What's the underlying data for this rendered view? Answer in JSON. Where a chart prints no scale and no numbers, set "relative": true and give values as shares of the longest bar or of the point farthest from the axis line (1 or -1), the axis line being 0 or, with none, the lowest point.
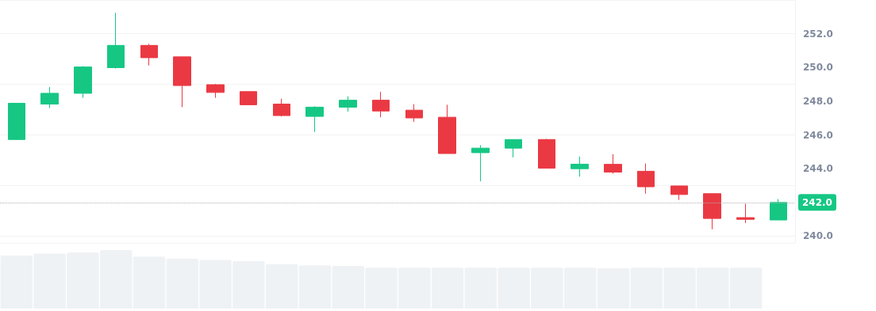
{
  "chart_data": [
    {
      "type": "candlestick",
      "categories": [
        null,
        null,
        null,
        null,
        null,
        null,
        null,
        null,
        null,
        null,
        null,
        null,
        null,
        null,
        null,
        null,
        null,
        null,
        null,
        null,
        null,
        null,
        null,
        null
      ],
      "ohlc": [
        [
          245.73,
          247.9,
          245.7,
          247.88
        ],
        [
          247.83,
          248.84,
          247.6,
          248.47
        ],
        [
          248.47,
          250.08,
          248.2,
          250.03
        ],
        [
          249.99,
          253.24,
          249.94,
          251.31
        ],
        [
          251.31,
          251.4,
          250.12,
          250.58
        ],
        [
          250.63,
          250.63,
          247.65,
          248.93
        ],
        [
          248.98,
          249.02,
          248.2,
          248.52
        ],
        [
          248.57,
          248.57,
          247.79,
          247.79
        ],
        [
          247.83,
          248.15,
          247.1,
          247.15
        ],
        [
          247.1,
          247.7,
          246.18,
          247.65
        ],
        [
          247.65,
          248.29,
          247.38,
          248.06
        ],
        [
          248.06,
          248.56,
          247.05,
          247.42
        ],
        [
          247.47,
          247.83,
          246.78,
          247.01
        ],
        [
          247.05,
          247.79,
          244.9,
          244.9
        ],
        [
          244.95,
          245.4,
          243.25,
          245.22
        ],
        [
          245.22,
          245.73,
          244.67,
          245.73
        ],
        [
          245.73,
          245.77,
          244.03,
          244.03
        ],
        [
          244.0,
          244.72,
          243.53,
          244.27
        ],
        [
          244.26,
          244.86,
          243.71,
          243.8
        ],
        [
          243.85,
          244.31,
          242.52,
          242.93
        ],
        [
          242.98,
          242.98,
          242.15,
          242.47
        ],
        [
          242.52,
          242.52,
          240.41,
          241.05
        ],
        [
          241.1,
          241.92,
          240.78,
          241.0
        ],
        [
          240.96,
          242.2,
          240.96,
          242.0
        ]
      ],
      "colors": [
        "#16c784",
        "#16c784",
        "#16c784",
        "#16c784",
        "#ea3943",
        "#ea3943",
        "#ea3943",
        "#ea3943",
        "#ea3943",
        "#16c784",
        "#16c784",
        "#ea3943",
        "#ea3943",
        "#ea3943",
        "#16c784",
        "#16c784",
        "#ea3943",
        "#16c784",
        "#ea3943",
        "#ea3943",
        "#ea3943",
        "#ea3943",
        "#ea3943",
        "#16c784"
      ],
      "ylim": [
        239.6,
        254
      ],
      "yticks": [
        {
          "value": 240,
          "label": "240.0"
        },
        {
          "value": 244,
          "label": "244.0"
        },
        {
          "value": 246,
          "label": "246.0"
        },
        {
          "value": 248,
          "label": "248.0"
        },
        {
          "value": 250,
          "label": "250.0"
        },
        {
          "value": 252,
          "label": "252.0"
        }
      ],
      "grid": "y",
      "ref_lines": [
        {
          "axis": "y",
          "value": 242.0,
          "label": "242.0",
          "color": "#b0b0b0",
          "line_style": "dotted"
        }
      ]
    },
    {
      "type": "bar",
      "relative": true,
      "color": "#eff2f5",
      "categories": [
        null,
        null,
        null,
        null,
        null,
        null,
        null,
        null,
        null,
        null,
        null,
        null,
        null,
        null,
        null,
        null,
        null,
        null,
        null,
        null,
        null,
        null,
        null
      ],
      "values": [
        0.91,
        0.94,
        0.96,
        1,
        0.89,
        0.85,
        0.83,
        0.81,
        0.76,
        0.74,
        0.73,
        0.7,
        0.7,
        0.7,
        0.7,
        0.7,
        0.7,
        0.7,
        0.69,
        0.7,
        0.7,
        0.7,
        0.7
      ]
    }
  ]
}
